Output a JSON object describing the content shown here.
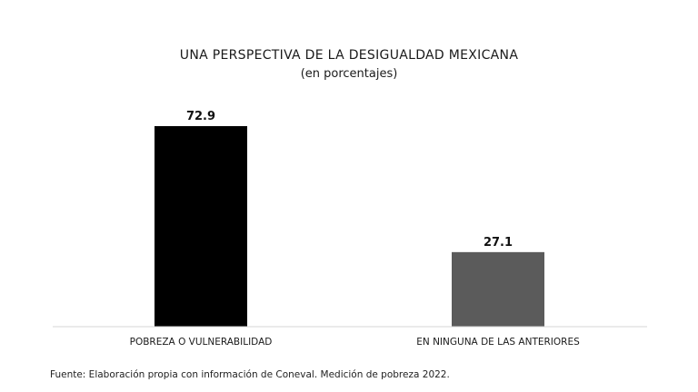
{
  "chart_data": {
    "type": "bar",
    "title": "UNA PERSPECTIVA DE LA DESIGUALDAD MEXICANA",
    "subtitle": "(en porcentajes)",
    "categories": [
      "POBREZA O VULNERABILIDAD",
      "EN NINGUNA DE LAS ANTERIORES"
    ],
    "values": [
      72.9,
      27.1
    ],
    "data_labels": [
      "72.9",
      "27.1"
    ],
    "colors": [
      "#000000",
      "#5b5b5b"
    ],
    "xlabel": "",
    "ylabel": "",
    "ylim": [
      0,
      72.9
    ],
    "grid": false,
    "legend": "none"
  },
  "source_note": "Fuente: Elaboración propia con información de Coneval. Medición de pobreza 2022."
}
